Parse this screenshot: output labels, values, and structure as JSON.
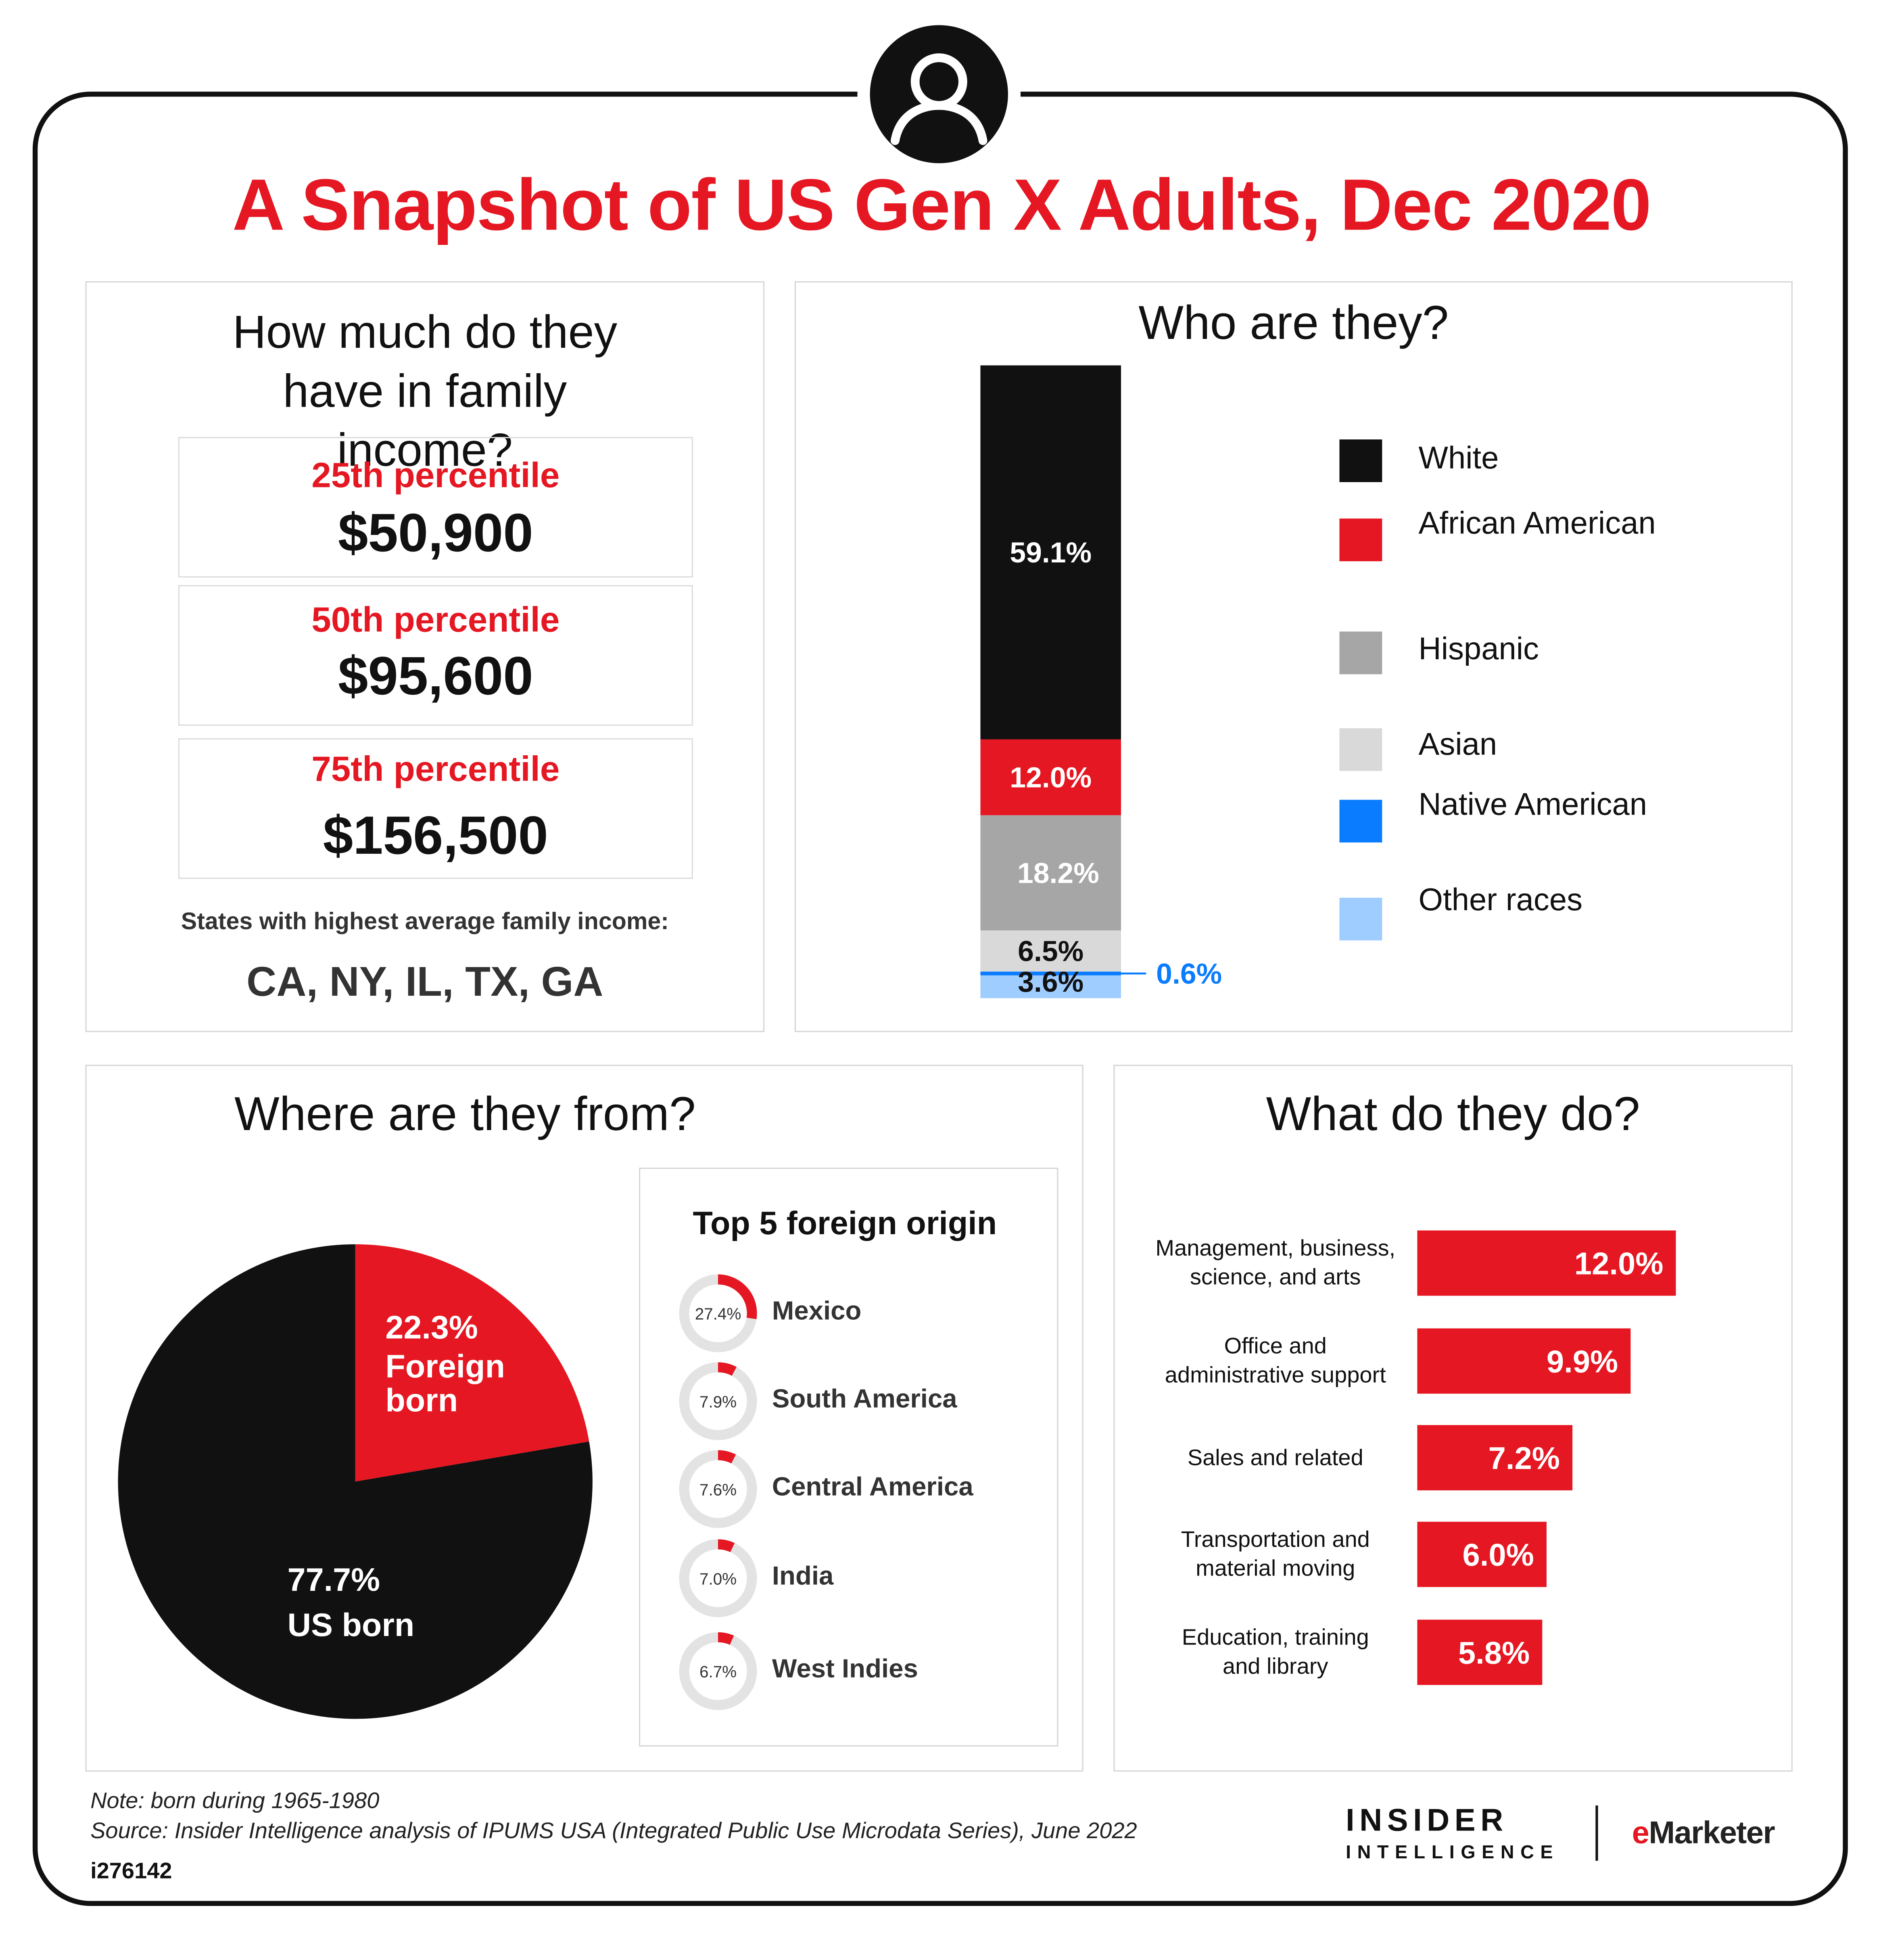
{
  "title": "A Snapshot of US Gen X Adults, Dec 2020",
  "icon": "user-avatar-icon",
  "colors": {
    "red": "#e51722",
    "black": "#111111",
    "gray": "#a6a6a6",
    "light_gray": "#d9d9d9",
    "blue": "#0a7cff",
    "light_blue": "#9fcdff"
  },
  "income": {
    "title": "How much do they have in family income?",
    "percentiles": [
      {
        "label": "25th percentile",
        "value": "$50,900"
      },
      {
        "label": "50th percentile",
        "value": "$95,600"
      },
      {
        "label": "75th percentile",
        "value": "$156,500"
      }
    ],
    "states_label": "States with highest average family income:",
    "states_value": "CA, NY, IL, TX, GA"
  },
  "origin": {
    "title": "Where are they from?",
    "top5_title": "Top 5 foreign origin"
  },
  "race_panel": {
    "title": "Who are they?"
  },
  "jobs_panel": {
    "title": "What do they do?"
  },
  "chart_data": [
    {
      "type": "bar",
      "stacked": true,
      "title": "Who are they?",
      "series": [
        {
          "name": "White",
          "value": 59.1,
          "label": "59.1%",
          "color": "#111111"
        },
        {
          "name": "African American",
          "value": 12.0,
          "label": "12.0%",
          "color": "#e51722"
        },
        {
          "name": "Hispanic",
          "value": 18.2,
          "label": "18.2%",
          "color": "#a6a6a6"
        },
        {
          "name": "Asian",
          "value": 6.5,
          "label": "6.5%",
          "color": "#d9d9d9"
        },
        {
          "name": "Native American",
          "value": 0.6,
          "label": "0.6%",
          "color": "#0a7cff"
        },
        {
          "name": "Other races",
          "value": 3.6,
          "label": "3.6%",
          "color": "#9fcdff"
        }
      ],
      "legend": "right"
    },
    {
      "type": "pie",
      "title": "Where are they from?",
      "slices": [
        {
          "value": 22.3,
          "pct_label": "22.3%",
          "label": "Foreign born",
          "color": "#e51722"
        },
        {
          "value": 77.7,
          "pct_label": "77.7%",
          "label": "US born",
          "color": "#111111"
        }
      ]
    },
    {
      "type": "pie",
      "title": "Top 5 foreign origin",
      "items": [
        {
          "name": "Mexico",
          "value": 27.4,
          "label": "27.4%"
        },
        {
          "name": "South America",
          "value": 7.9,
          "label": "7.9%"
        },
        {
          "name": "Central America",
          "value": 7.6,
          "label": "7.6%"
        },
        {
          "name": "India",
          "value": 7.0,
          "label": "7.0%"
        },
        {
          "name": "West Indies",
          "value": 6.7,
          "label": "6.7%"
        }
      ]
    },
    {
      "type": "bar",
      "orientation": "horizontal",
      "title": "What do they do?",
      "categories": [
        "Management, business,\nscience, and arts",
        "Office and\nadministrative support",
        "Sales and related",
        "Transportation and\nmaterial moving",
        "Education, training\nand library"
      ],
      "values": [
        12.0,
        9.9,
        7.2,
        6.0,
        5.8
      ],
      "labels": [
        "12.0%",
        "9.9%",
        "7.2%",
        "6.0%",
        "5.8%"
      ],
      "color": "#e51722"
    }
  ],
  "footer": {
    "note": "Note: born during 1965-1980",
    "source": "Source: Insider Intelligence analysis of IPUMS USA (Integrated Public Use Microdata Series), June 2022",
    "id": "i276142",
    "brand_line1": "INSIDER",
    "brand_line2": "INTELLIGENCE",
    "brand_e": "e",
    "brand_rest": "Marketer"
  }
}
